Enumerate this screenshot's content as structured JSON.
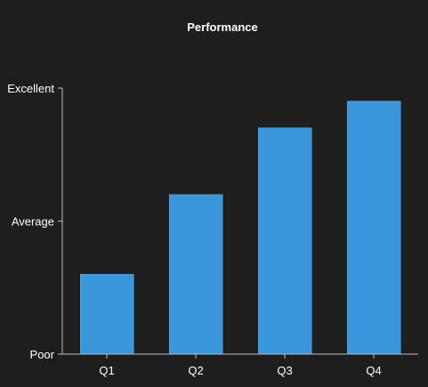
{
  "chart_data": {
    "type": "bar",
    "title": "Performance",
    "xlabel": "",
    "ylabel": "",
    "categories": [
      "Q1",
      "Q2",
      "Q3",
      "Q4"
    ],
    "values": [
      1.2,
      2.4,
      3.4,
      3.8
    ],
    "ylim": [
      0,
      4
    ],
    "y_ticks": [
      {
        "value": 0,
        "label": "Poor"
      },
      {
        "value": 2,
        "label": "Average"
      },
      {
        "value": 4,
        "label": "Excellent"
      }
    ],
    "bar_color": "#3a97dc",
    "background_color": "#1e1e1e",
    "grid": false,
    "legend": "none"
  }
}
